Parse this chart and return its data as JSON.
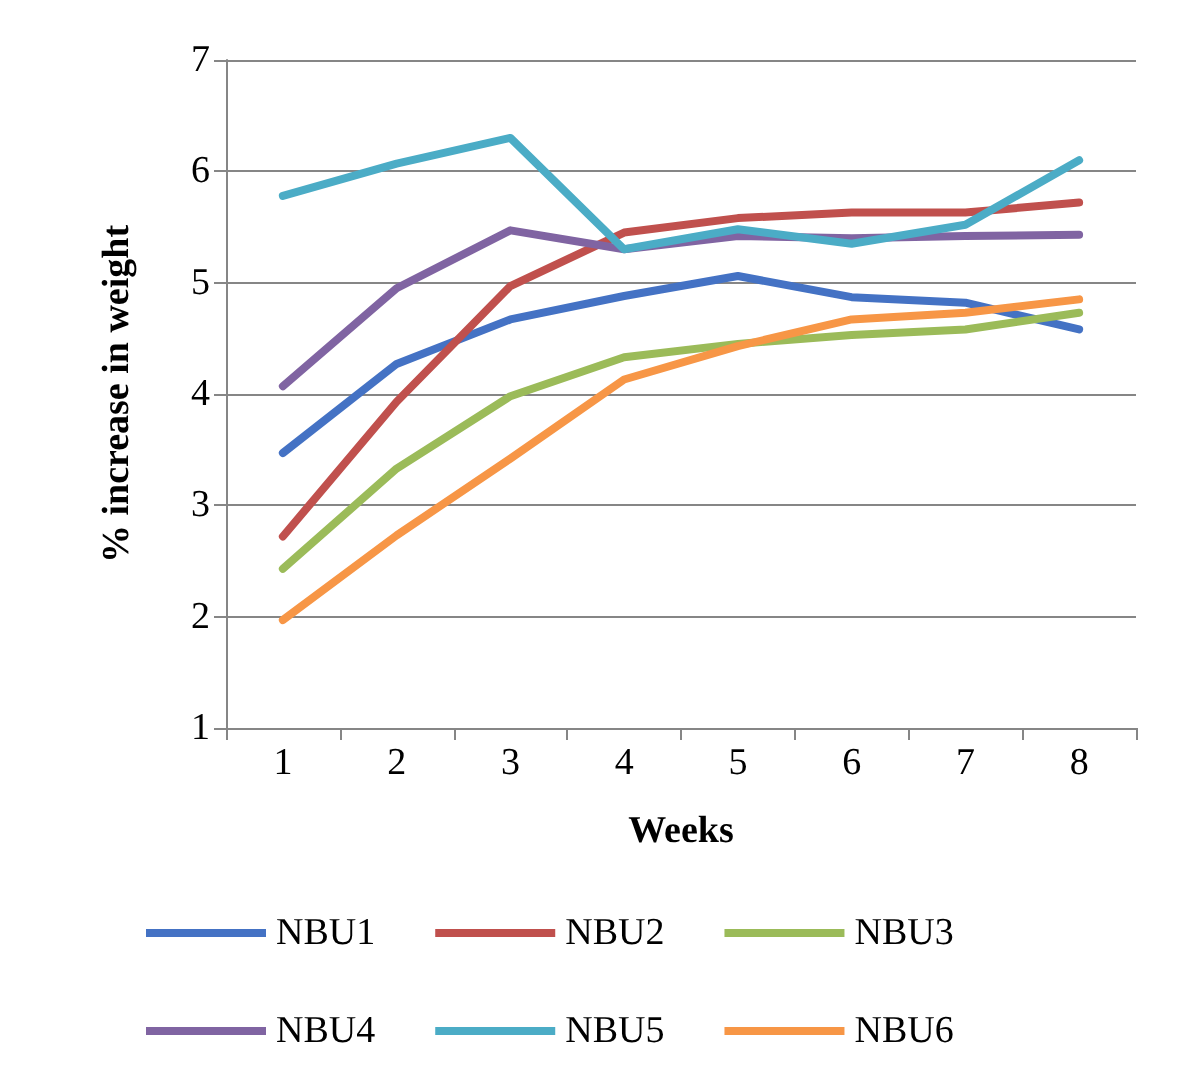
{
  "chart_data": {
    "type": "line",
    "xlabel": "Weeks",
    "ylabel": "% increase in weight",
    "categories": [
      "1",
      "2",
      "3",
      "4",
      "5",
      "6",
      "7",
      "8"
    ],
    "series": [
      {
        "name": "NBU1",
        "color": "#4472c4",
        "values": [
          3.47,
          4.27,
          4.67,
          4.88,
          5.06,
          4.87,
          4.82,
          4.58
        ]
      },
      {
        "name": "NBU2",
        "color": "#c0504d",
        "values": [
          2.72,
          3.93,
          4.97,
          5.45,
          5.58,
          5.63,
          5.63,
          5.72
        ]
      },
      {
        "name": "NBU3",
        "color": "#9bbb59",
        "values": [
          2.43,
          3.33,
          3.98,
          4.33,
          4.45,
          4.53,
          4.58,
          4.73
        ]
      },
      {
        "name": "NBU4",
        "color": "#8064a2",
        "values": [
          4.07,
          4.95,
          5.47,
          5.3,
          5.42,
          5.4,
          5.42,
          5.43
        ]
      },
      {
        "name": "NBU5",
        "color": "#4bacc6",
        "values": [
          5.78,
          6.07,
          6.3,
          5.3,
          5.48,
          5.35,
          5.52,
          6.1
        ]
      },
      {
        "name": "NBU6",
        "color": "#f79646",
        "values": [
          1.97,
          2.73,
          3.42,
          4.13,
          4.43,
          4.67,
          4.73,
          4.85
        ]
      }
    ],
    "ylim": [
      1,
      7
    ],
    "yticks": [
      1,
      2,
      3,
      4,
      5,
      6,
      7
    ],
    "grid": "y",
    "legend": "bottom",
    "marker": "none",
    "line_style": "solid"
  }
}
